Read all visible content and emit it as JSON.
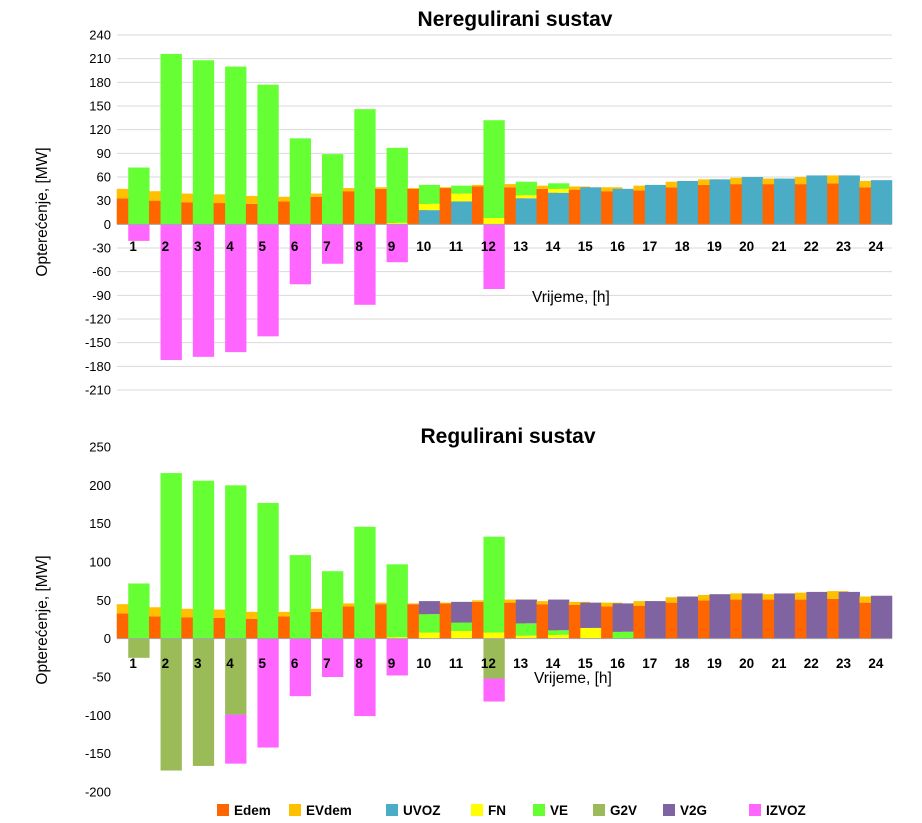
{
  "chart_data": [
    {
      "type": "bar",
      "title": "Neregulirani sustav",
      "xlabel": "Vrijeme, [h]",
      "ylabel": "Opterećenje, [MW]",
      "ylim": [
        -210,
        240
      ],
      "yticks": [
        -210,
        -180,
        -150,
        -120,
        -90,
        -60,
        -30,
        0,
        30,
        60,
        90,
        120,
        150,
        180,
        210,
        240
      ],
      "grid": true,
      "categories": [
        "1",
        "2",
        "3",
        "4",
        "5",
        "6",
        "7",
        "8",
        "9",
        "10",
        "11",
        "12",
        "13",
        "14",
        "15",
        "16",
        "17",
        "18",
        "19",
        "20",
        "21",
        "22",
        "23",
        "24"
      ],
      "series": [
        {
          "name": "Edem",
          "color": "#ff6600",
          "group": "a",
          "values": [
            33,
            30,
            28,
            27,
            26,
            29,
            35,
            42,
            45,
            45,
            46,
            48,
            47,
            45,
            44,
            42,
            43,
            47,
            50,
            51,
            51,
            51,
            52,
            47
          ]
        },
        {
          "name": "EVdem",
          "color": "#ffc000",
          "group": "a",
          "values": [
            12,
            12,
            11,
            11,
            10,
            6,
            4,
            4,
            2,
            1,
            1,
            2,
            4,
            4,
            4,
            5,
            6,
            7,
            7,
            8,
            7,
            9,
            10,
            8
          ]
        },
        {
          "name": "UVOZ",
          "color": "#4bacc6",
          "group": "b",
          "values": [
            0,
            0,
            0,
            0,
            0,
            0,
            0,
            0,
            0,
            18,
            29,
            0,
            33,
            40,
            47,
            45,
            50,
            55,
            57,
            60,
            58,
            62,
            62,
            56
          ]
        },
        {
          "name": "FN",
          "color": "#ffff00",
          "group": "b",
          "values": [
            0,
            0,
            0,
            0,
            0,
            0,
            0,
            0,
            2,
            8,
            10,
            8,
            4,
            5,
            0,
            0,
            0,
            0,
            0,
            0,
            0,
            0,
            0,
            0
          ]
        },
        {
          "name": "VE",
          "color": "#66ff33",
          "group": "b",
          "values": [
            72,
            216,
            208,
            200,
            177,
            109,
            89,
            146,
            95,
            24,
            10,
            124,
            17,
            7,
            0,
            0,
            0,
            0,
            0,
            0,
            0,
            0,
            0,
            0
          ]
        },
        {
          "name": "G2V",
          "color": "#9bbb59",
          "group": "b",
          "values": [
            0,
            0,
            0,
            0,
            0,
            0,
            0,
            0,
            0,
            0,
            0,
            0,
            0,
            0,
            0,
            0,
            0,
            0,
            0,
            0,
            0,
            0,
            0,
            0
          ]
        },
        {
          "name": "V2G",
          "color": "#8064a2",
          "group": "b",
          "values": [
            0,
            0,
            0,
            0,
            0,
            0,
            0,
            0,
            0,
            0,
            0,
            0,
            0,
            0,
            0,
            0,
            0,
            0,
            0,
            0,
            0,
            0,
            0,
            0
          ]
        },
        {
          "name": "IZVOZ",
          "color": "#ff66ff",
          "group": "b",
          "values": [
            -21,
            -172,
            -168,
            -162,
            -142,
            -76,
            -50,
            -102,
            -48,
            0,
            0,
            -82,
            0,
            0,
            0,
            0,
            0,
            0,
            0,
            0,
            0,
            0,
            0,
            0
          ]
        }
      ]
    },
    {
      "type": "bar",
      "title": "Regulirani sustav",
      "xlabel": "Vrijeme, [h]",
      "ylabel": "Opterećenje, [MW]",
      "ylim": [
        -200,
        250
      ],
      "yticks": [
        -200,
        -150,
        -100,
        -50,
        0,
        50,
        100,
        150,
        200,
        250
      ],
      "grid": false,
      "categories": [
        "1",
        "2",
        "3",
        "4",
        "5",
        "6",
        "7",
        "8",
        "9",
        "10",
        "11",
        "12",
        "13",
        "14",
        "15",
        "16",
        "17",
        "18",
        "19",
        "20",
        "21",
        "22",
        "23",
        "24"
      ],
      "series": [
        {
          "name": "Edem",
          "color": "#ff6600",
          "group": "a",
          "values": [
            33,
            29,
            28,
            27,
            26,
            29,
            35,
            42,
            45,
            45,
            46,
            48,
            47,
            45,
            44,
            42,
            43,
            47,
            50,
            51,
            51,
            51,
            52,
            47
          ]
        },
        {
          "name": "EVdem",
          "color": "#ffc000",
          "group": "a",
          "values": [
            12,
            12,
            11,
            11,
            9,
            6,
            4,
            4,
            2,
            1,
            1,
            2,
            4,
            4,
            4,
            5,
            6,
            7,
            7,
            8,
            7,
            9,
            10,
            8
          ]
        },
        {
          "name": "UVOZ",
          "color": "#4bacc6",
          "group": "b",
          "values": [
            0,
            0,
            0,
            0,
            0,
            0,
            0,
            0,
            0,
            0,
            0,
            0,
            0,
            0,
            0,
            0,
            0,
            0,
            0,
            0,
            0,
            0,
            0,
            0
          ]
        },
        {
          "name": "FN",
          "color": "#ffff00",
          "group": "b",
          "values": [
            0,
            0,
            0,
            0,
            0,
            0,
            0,
            0,
            2,
            8,
            10,
            8,
            4,
            5,
            14,
            0,
            0,
            0,
            0,
            0,
            0,
            0,
            0,
            0
          ]
        },
        {
          "name": "VE",
          "color": "#66ff33",
          "group": "b",
          "values": [
            72,
            216,
            206,
            200,
            177,
            109,
            88,
            146,
            95,
            24,
            11,
            125,
            16,
            6,
            0,
            9,
            0,
            0,
            0,
            0,
            0,
            0,
            0,
            0
          ]
        },
        {
          "name": "G2V",
          "color": "#9bbb59",
          "group": "b",
          "values": [
            -25,
            -172,
            -166,
            -99,
            0,
            0,
            0,
            0,
            0,
            0,
            0,
            -52,
            0,
            0,
            0,
            0,
            0,
            0,
            0,
            0,
            0,
            0,
            0,
            0
          ]
        },
        {
          "name": "V2G",
          "color": "#8064a2",
          "group": "b",
          "values": [
            0,
            0,
            0,
            0,
            0,
            0,
            0,
            0,
            0,
            17,
            27,
            0,
            31,
            40,
            33,
            37,
            49,
            55,
            58,
            59,
            59,
            61,
            61,
            56
          ]
        },
        {
          "name": "IZVOZ",
          "color": "#ff66ff",
          "group": "b",
          "values": [
            0,
            0,
            0,
            -64,
            -142,
            -75,
            -50,
            -101,
            -48,
            0,
            0,
            -30,
            0,
            0,
            0,
            0,
            0,
            0,
            0,
            0,
            0,
            0,
            0,
            0
          ]
        }
      ]
    }
  ],
  "legend": [
    {
      "name": "Edem",
      "color": "#ff6600"
    },
    {
      "name": "EVdem",
      "color": "#ffc000"
    },
    {
      "name": "UVOZ",
      "color": "#4bacc6"
    },
    {
      "name": "FN",
      "color": "#ffff00"
    },
    {
      "name": "VE",
      "color": "#66ff33"
    },
    {
      "name": "G2V",
      "color": "#9bbb59"
    },
    {
      "name": "V2G",
      "color": "#8064a2"
    },
    {
      "name": "IZVOZ",
      "color": "#ff66ff"
    }
  ]
}
